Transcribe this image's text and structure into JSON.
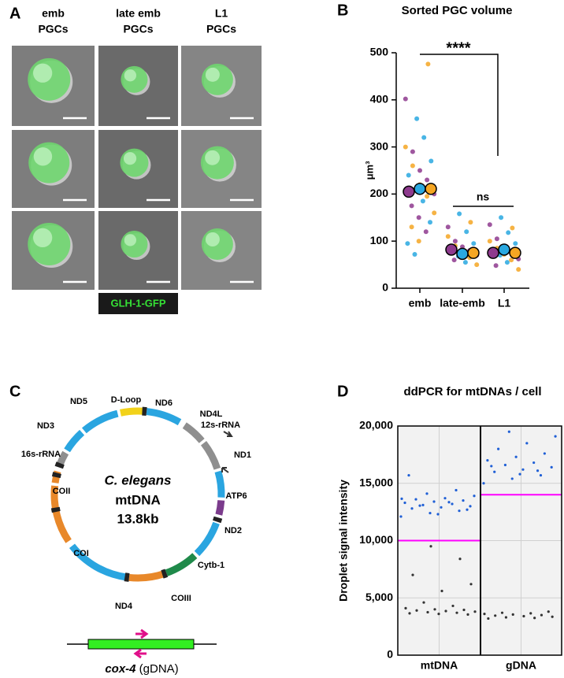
{
  "panel_a": {
    "letter": "A",
    "headers": [
      [
        "emb",
        "PGCs"
      ],
      [
        "late emb",
        "PGCs"
      ],
      [
        "L1",
        "PGCs"
      ]
    ],
    "stain_label": "GLH-1-GFP"
  },
  "panel_c": {
    "letter": "C",
    "center_title": "C. elegans",
    "center_lines": [
      "mtDNA",
      "13.8kb"
    ],
    "genes": [
      "D-Loop",
      "ND6",
      "ND4L",
      "12s-rRNA",
      "ND1",
      "ATP6",
      "ND2",
      "Cytb-1",
      "COIII",
      "ND4",
      "COI",
      "COII",
      "16s-rRNA",
      "ND3",
      "ND5"
    ],
    "amplicon_gene": "cox-4",
    "amplicon_source": "(gDNA)"
  },
  "chart_data": [
    {
      "type": "scatter",
      "letter": "B",
      "title": "Sorted PGC volume",
      "y_label": "μm³",
      "categories": [
        "emb",
        "late-emb",
        "L1"
      ],
      "ylim": [
        0,
        500
      ],
      "yticks": [
        0,
        100,
        200,
        300,
        400,
        500
      ],
      "annotations": [
        "****",
        "ns"
      ],
      "series": [
        {
          "color": "#8e3a8e",
          "values": [
            205,
            82,
            75
          ],
          "points": [
            [
              402,
              290,
              250,
              230,
              200,
              175,
              150,
              120
            ],
            [
              130,
              100,
              88,
              80,
              70,
              60
            ],
            [
              135,
              105,
              88,
              75,
              62,
              48
            ]
          ]
        },
        {
          "color": "#29a8e0",
          "values": [
            211,
            73,
            82
          ],
          "points": [
            [
              360,
              320,
              270,
              240,
              210,
              185,
              140,
              95,
              72
            ],
            [
              158,
              120,
              95,
              78,
              68,
              55
            ],
            [
              150,
              118,
              95,
              80,
              70,
              55
            ]
          ]
        },
        {
          "color": "#f5a623",
          "values": [
            211,
            75,
            75
          ],
          "points": [
            [
              476,
              300,
              260,
              220,
              195,
              160,
              130,
              100
            ],
            [
              140,
              110,
              90,
              74,
              65,
              50
            ],
            [
              128,
              100,
              85,
              72,
              60,
              40
            ]
          ]
        }
      ]
    },
    {
      "type": "droplet",
      "letter": "D",
      "title": "ddPCR for mtDNAs / cell",
      "y_label": "Droplet signal intensity",
      "categories": [
        "mtDNA",
        "gDNA"
      ],
      "ylim": [
        0,
        20000
      ],
      "yticks": [
        0,
        {
          "value": 5000,
          "label": "5,000"
        },
        {
          "value": 10000,
          "label": "10,000"
        },
        {
          "value": 15000,
          "label": "15,000"
        },
        {
          "value": 20000,
          "label": "20,000"
        }
      ],
      "thresholds": [
        10000,
        14000
      ],
      "threshold_color": "#ff00ff",
      "positive_color": "#1f5fd6",
      "negative_color": "#333333",
      "grid": true,
      "droplets": [
        [
          12100,
          12400,
          12600,
          12800,
          12900,
          13000,
          13100,
          13200,
          13300,
          13400,
          13500,
          13600,
          13700,
          13900,
          14100,
          14400,
          15700,
          12300,
          12700,
          13050,
          13350,
          13650,
          9500,
          8400,
          7000,
          5600,
          6200,
          4600,
          4300,
          4100,
          4000,
          3950,
          3900,
          3850,
          3800,
          3750,
          3700,
          3650,
          3600,
          3550
        ],
        [
          15000,
          15400,
          15700,
          16000,
          16200,
          16400,
          16600,
          16800,
          17000,
          17300,
          17600,
          18000,
          18500,
          19100,
          19500,
          16100,
          16500,
          15800,
          3800,
          3700,
          3650,
          3600,
          3550,
          3500,
          3450,
          3400,
          3350,
          3300,
          3250,
          3200
        ]
      ]
    }
  ]
}
